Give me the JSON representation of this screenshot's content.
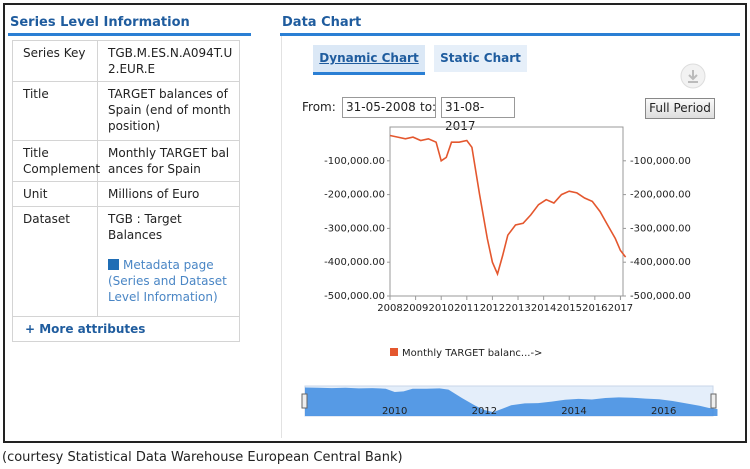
{
  "left_panel": {
    "title": "Series Level Information",
    "rows": [
      {
        "label": "Series Key",
        "value": "TGB.M.ES.N.A094T.U2.EUR.E"
      },
      {
        "label": "Title",
        "value": "TARGET balances of Spain (end of month position)"
      },
      {
        "label": "Title Complement",
        "value": "Monthly TARGET balances for Spain"
      },
      {
        "label": "Unit",
        "value": "Millions of Euro"
      },
      {
        "label": "Dataset",
        "value": "TGB : Target Balances",
        "link": "Metadata page (Series and Dataset Level Information)"
      }
    ],
    "more": "+ More attributes"
  },
  "right_panel": {
    "title": "Data Chart",
    "tabs": [
      "Dynamic Chart",
      "Static Chart"
    ],
    "from_label": "From:",
    "from": "31-05-2008",
    "to_label": "to:",
    "to": "31-08-2017",
    "button": "Full Period"
  },
  "chart_data": {
    "type": "line",
    "x": [
      2008.0,
      2008.3,
      2008.6,
      2008.9,
      2009.2,
      2009.5,
      2009.8,
      2010.0,
      2010.2,
      2010.4,
      2010.7,
      2011.0,
      2011.2,
      2011.5,
      2011.8,
      2012.0,
      2012.2,
      2012.4,
      2012.6,
      2012.9,
      2013.2,
      2013.5,
      2013.8,
      2014.1,
      2014.4,
      2014.7,
      2015.0,
      2015.3,
      2015.6,
      2015.9,
      2016.2,
      2016.5,
      2016.8,
      2017.0,
      2017.2
    ],
    "series": [
      {
        "name": "Monthly TARGET balanc...->",
        "color": "#e4572e",
        "values": [
          -25000,
          -30000,
          -35000,
          -30000,
          -40000,
          -35000,
          -45000,
          -100000,
          -90000,
          -45000,
          -45000,
          -40000,
          -60000,
          -200000,
          -330000,
          -400000,
          -435000,
          -380000,
          -320000,
          -290000,
          -285000,
          -260000,
          -230000,
          -215000,
          -225000,
          -200000,
          -190000,
          -195000,
          -210000,
          -220000,
          -250000,
          -290000,
          -330000,
          -365000,
          -385000
        ]
      }
    ],
    "xlim": [
      2008,
      2017.1
    ],
    "xticks": [
      2008,
      2009,
      2010,
      2011,
      2012,
      2013,
      2014,
      2015,
      2016,
      2017
    ],
    "ylim": [
      -500000,
      0
    ],
    "yticks": [
      {
        "value": -100000,
        "label": "-100,000.00"
      },
      {
        "value": -200000,
        "label": "-200,000.00"
      },
      {
        "value": -300000,
        "label": "-300,000.00"
      },
      {
        "value": -400000,
        "label": "-400,000.00"
      },
      {
        "value": -500000,
        "label": "-500,000.00"
      }
    ],
    "y2lim": [
      -500000,
      0
    ],
    "y2ticks": [
      {
        "value": -100000,
        "label": "-100,000.00"
      },
      {
        "value": -200000,
        "label": "-200,000.00"
      },
      {
        "value": -300000,
        "label": "-300,000.00"
      },
      {
        "value": -400000,
        "label": "-400,000.00"
      },
      {
        "value": -500000,
        "label": "-500,000.00"
      }
    ],
    "navigator_xticks": [
      2010,
      2012,
      2014,
      2016
    ],
    "navigator_color": "#3d8be0"
  },
  "caption": "(courtesy Statistical Data Warehouse European Central Bank)"
}
